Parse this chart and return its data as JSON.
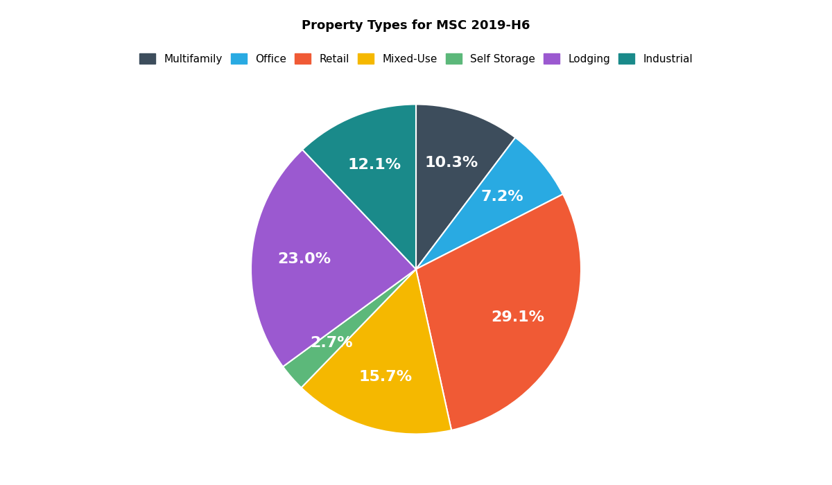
{
  "title": "Property Types for MSC 2019-H6",
  "categories": [
    "Multifamily",
    "Office",
    "Retail",
    "Mixed-Use",
    "Self Storage",
    "Lodging",
    "Industrial"
  ],
  "values": [
    10.3,
    7.2,
    29.1,
    15.7,
    2.7,
    23.0,
    12.1
  ],
  "colors": [
    "#3d4d5c",
    "#29aae2",
    "#f05a35",
    "#f5b800",
    "#5cb87a",
    "#9b59d0",
    "#1a8a8a"
  ],
  "label_color": "white",
  "label_fontsize": 16,
  "title_fontsize": 13,
  "legend_fontsize": 11,
  "background_color": "#ffffff",
  "startangle": 90,
  "pctdistance": 0.68
}
